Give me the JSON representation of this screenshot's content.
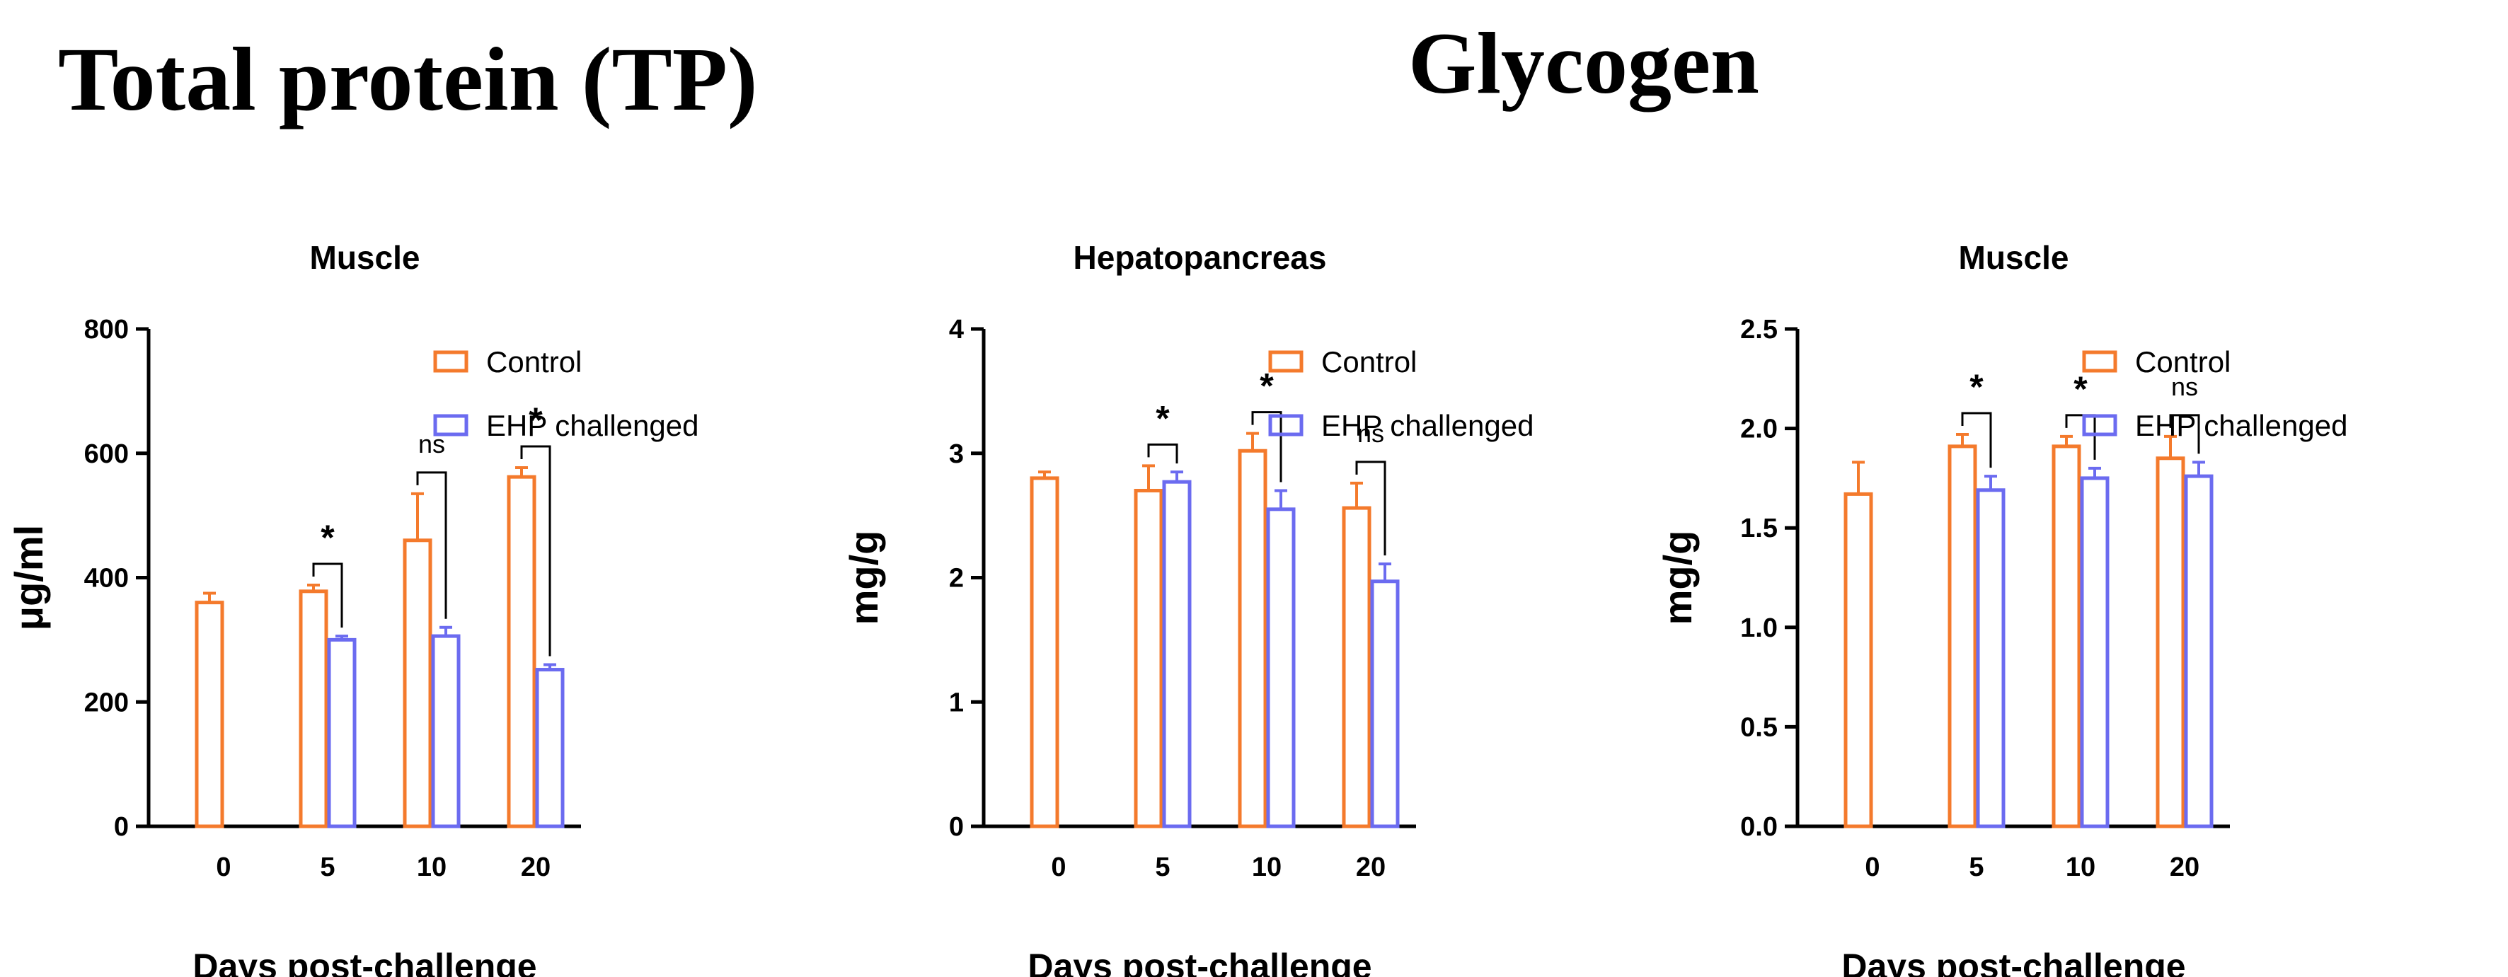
{
  "headings": {
    "total_protein": "Total protein (TP)",
    "glycogen": "Glycogen"
  },
  "colors": {
    "control": "#F47A2C",
    "ehp": "#6B6BF0",
    "axis": "#000000"
  },
  "chart_data": [
    {
      "type": "bar",
      "title": "Muscle",
      "xlabel": "Days post-challenge",
      "ylabel": "μg/ml",
      "categories": [
        "0",
        "5",
        "10",
        "20"
      ],
      "ylim": [
        0,
        800
      ],
      "yticks": [
        "0",
        "200",
        "400",
        "600",
        "800"
      ],
      "ytick_values": [
        0,
        200,
        400,
        600,
        800
      ],
      "series": [
        {
          "name": "Control",
          "values": [
            360,
            378,
            460,
            562
          ],
          "errors": [
            15,
            10,
            75,
            15
          ]
        },
        {
          "name": "EHP challenged",
          "values": [
            null,
            300,
            306,
            252
          ],
          "errors": [
            null,
            6,
            14,
            8
          ]
        }
      ],
      "significance": [
        "",
        "*",
        "ns",
        "*"
      ],
      "legend": [
        "Control",
        "EHP challenged"
      ],
      "legend_position": "top-right"
    },
    {
      "type": "bar",
      "title": "Hepatopancreas",
      "xlabel": "Days post-challenge",
      "ylabel": "mg/g",
      "categories": [
        "0",
        "5",
        "10",
        "20"
      ],
      "ylim": [
        0,
        4
      ],
      "yticks": [
        "0",
        "1",
        "2",
        "3",
        "4"
      ],
      "ytick_values": [
        0,
        1,
        2,
        3,
        4
      ],
      "series": [
        {
          "name": "Control",
          "values": [
            2.8,
            2.7,
            3.02,
            2.56
          ],
          "errors": [
            0.05,
            0.2,
            0.14,
            0.2
          ]
        },
        {
          "name": "EHP challenged",
          "values": [
            null,
            2.77,
            2.55,
            1.97
          ],
          "errors": [
            null,
            0.08,
            0.15,
            0.14
          ]
        }
      ],
      "significance": [
        "",
        "*",
        "*",
        "ns"
      ],
      "legend": [
        "Control",
        "EHP challenged"
      ],
      "legend_position": "top-right"
    },
    {
      "type": "bar",
      "title": "Muscle",
      "xlabel": "Days post-challenge",
      "ylabel": "mg/g",
      "categories": [
        "0",
        "5",
        "10",
        "20"
      ],
      "ylim": [
        0,
        2.5
      ],
      "yticks": [
        "0.0",
        "0.5",
        "1.0",
        "1.5",
        "2.0",
        "2.5"
      ],
      "ytick_values": [
        0,
        0.5,
        1.0,
        1.5,
        2.0,
        2.5
      ],
      "series": [
        {
          "name": "Control",
          "values": [
            1.67,
            1.91,
            1.91,
            1.85
          ],
          "errors": [
            0.16,
            0.06,
            0.05,
            0.11
          ]
        },
        {
          "name": "EHP challenged",
          "values": [
            null,
            1.69,
            1.75,
            1.76
          ],
          "errors": [
            null,
            0.07,
            0.05,
            0.07
          ]
        }
      ],
      "significance": [
        "",
        "*",
        "*",
        "ns"
      ],
      "legend": [
        "Control",
        "EHP challenged"
      ],
      "legend_position": "top-right"
    }
  ]
}
